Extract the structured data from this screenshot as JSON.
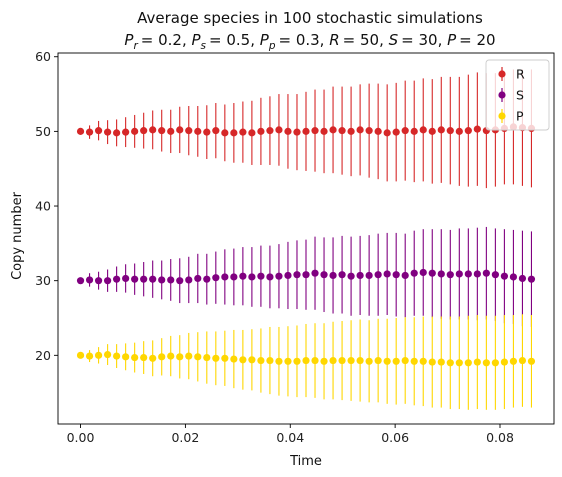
{
  "chart_data": {
    "type": "scatter",
    "title": "Average species in 100 stochastic simulations",
    "subtitle": {
      "parts": [
        {
          "sym": "P",
          "sub": "r",
          "val": "= 0.2, "
        },
        {
          "sym": "P",
          "sub": "s",
          "val": "= 0.5, "
        },
        {
          "sym": "P",
          "sub": "p",
          "val": "= 0.3, "
        },
        {
          "sym": "R",
          "sub": "",
          "val": "= 50, "
        },
        {
          "sym": "S",
          "sub": "",
          "val": "= 30, "
        },
        {
          "sym": "P",
          "sub": "",
          "val": "= 20"
        }
      ]
    },
    "xlabel": "Time",
    "ylabel": "Copy number",
    "xlim": [
      -0.0043,
      0.0903
    ],
    "ylim": [
      10.8,
      60.5
    ],
    "xticks": [
      {
        "value": 0.0,
        "label": "0.00"
      },
      {
        "value": 0.02,
        "label": "0.02"
      },
      {
        "value": 0.04,
        "label": "0.04"
      },
      {
        "value": 0.06,
        "label": "0.06"
      },
      {
        "value": 0.08,
        "label": "0.08"
      }
    ],
    "yticks": [
      {
        "value": 20,
        "label": "20"
      },
      {
        "value": 30,
        "label": "30"
      },
      {
        "value": 40,
        "label": "40"
      },
      {
        "value": 50,
        "label": "50"
      },
      {
        "value": 60,
        "label": "60"
      }
    ],
    "grid": false,
    "legend_position": "top-right",
    "x": [
      0.0,
      0.00172,
      0.00344,
      0.00516,
      0.00688,
      0.0086,
      0.01032,
      0.01204,
      0.01376,
      0.01548,
      0.0172,
      0.01892,
      0.02064,
      0.02236,
      0.02408,
      0.0258,
      0.02752,
      0.02924,
      0.03096,
      0.03268,
      0.0344,
      0.03612,
      0.03784,
      0.03956,
      0.04128,
      0.043,
      0.04472,
      0.04644,
      0.04816,
      0.04988,
      0.0516,
      0.05332,
      0.05504,
      0.05676,
      0.05848,
      0.0602,
      0.06192,
      0.06364,
      0.06536,
      0.06708,
      0.0688,
      0.07052,
      0.07224,
      0.07396,
      0.07568,
      0.0774,
      0.07912,
      0.08084,
      0.08256,
      0.08428,
      0.086
    ],
    "series": [
      {
        "name": "R",
        "color": "#d62728",
        "mean": [
          50.0,
          49.9,
          50.1,
          49.9,
          49.8,
          49.9,
          50.0,
          50.1,
          50.2,
          50.1,
          50.0,
          50.2,
          50.1,
          50.0,
          49.9,
          50.1,
          49.8,
          49.8,
          49.9,
          49.8,
          50.0,
          50.1,
          50.2,
          50.0,
          49.9,
          50.0,
          50.1,
          50.0,
          50.2,
          50.1,
          50.0,
          50.2,
          50.1,
          50.0,
          49.8,
          49.9,
          50.1,
          50.0,
          50.2,
          50.0,
          50.2,
          50.1,
          50.0,
          50.1,
          50.3,
          50.1,
          50.2,
          50.4,
          50.6,
          50.5,
          50.4
        ],
        "error": [
          0.4,
          0.9,
          1.3,
          1.6,
          1.8,
          2.0,
          2.2,
          2.4,
          2.6,
          2.8,
          2.9,
          3.1,
          3.3,
          3.4,
          3.6,
          3.7,
          3.8,
          4.0,
          4.1,
          4.3,
          4.5,
          4.6,
          4.8,
          5.0,
          5.1,
          5.3,
          5.5,
          5.6,
          5.8,
          5.9,
          6.0,
          6.1,
          6.3,
          6.4,
          6.5,
          6.6,
          6.7,
          6.8,
          6.9,
          7.0,
          7.1,
          7.2,
          7.3,
          7.5,
          7.6,
          7.7,
          7.6,
          7.5,
          7.7,
          7.8,
          7.9
        ]
      },
      {
        "name": "S",
        "color": "#800080",
        "mean": [
          30.0,
          30.1,
          30.0,
          30.0,
          30.2,
          30.3,
          30.2,
          30.2,
          30.2,
          30.1,
          30.1,
          30.0,
          30.1,
          30.3,
          30.2,
          30.4,
          30.5,
          30.5,
          30.6,
          30.5,
          30.6,
          30.5,
          30.6,
          30.7,
          30.8,
          30.8,
          31.0,
          30.8,
          30.7,
          30.8,
          30.6,
          30.7,
          30.7,
          30.8,
          30.9,
          30.8,
          30.7,
          31.0,
          31.1,
          31.0,
          30.9,
          30.8,
          30.9,
          30.9,
          30.9,
          31.0,
          30.8,
          30.6,
          30.5,
          30.3,
          30.2
        ],
        "error": [
          0.4,
          0.9,
          1.2,
          1.5,
          1.7,
          1.9,
          2.1,
          2.3,
          2.5,
          2.6,
          2.8,
          3.0,
          3.1,
          3.3,
          3.4,
          3.5,
          3.7,
          3.8,
          3.9,
          4.0,
          4.1,
          4.2,
          4.3,
          4.5,
          4.6,
          4.7,
          4.9,
          5.0,
          5.1,
          5.2,
          5.3,
          5.3,
          5.4,
          5.5,
          5.5,
          5.6,
          5.6,
          5.7,
          5.8,
          5.9,
          6.0,
          6.0,
          6.1,
          6.1,
          6.2,
          6.2,
          6.2,
          6.3,
          6.3,
          6.4,
          6.4
        ]
      },
      {
        "name": "P",
        "color": "#ffd700",
        "mean": [
          20.0,
          19.9,
          20.0,
          20.1,
          19.9,
          19.8,
          19.7,
          19.7,
          19.6,
          19.8,
          19.9,
          19.8,
          19.9,
          19.8,
          19.7,
          19.6,
          19.6,
          19.5,
          19.4,
          19.4,
          19.3,
          19.3,
          19.2,
          19.2,
          19.2,
          19.3,
          19.3,
          19.2,
          19.3,
          19.3,
          19.3,
          19.3,
          19.2,
          19.3,
          19.2,
          19.2,
          19.3,
          19.2,
          19.2,
          19.1,
          19.1,
          19.0,
          19.0,
          19.0,
          19.1,
          19.0,
          19.0,
          19.1,
          19.2,
          19.3,
          19.2
        ],
        "error": [
          0.3,
          0.8,
          1.1,
          1.4,
          1.6,
          1.8,
          2.0,
          2.2,
          2.4,
          2.5,
          2.7,
          2.9,
          3.1,
          3.3,
          3.5,
          3.6,
          3.7,
          3.9,
          4.0,
          4.1,
          4.3,
          4.5,
          4.6,
          4.7,
          4.8,
          4.9,
          5.0,
          5.1,
          5.2,
          5.3,
          5.4,
          5.5,
          5.5,
          5.6,
          5.7,
          5.8,
          5.8,
          5.9,
          6.0,
          6.1,
          6.1,
          6.2,
          6.2,
          6.3,
          6.3,
          6.3,
          6.3,
          6.3,
          6.2,
          6.2,
          6.2
        ]
      }
    ]
  }
}
